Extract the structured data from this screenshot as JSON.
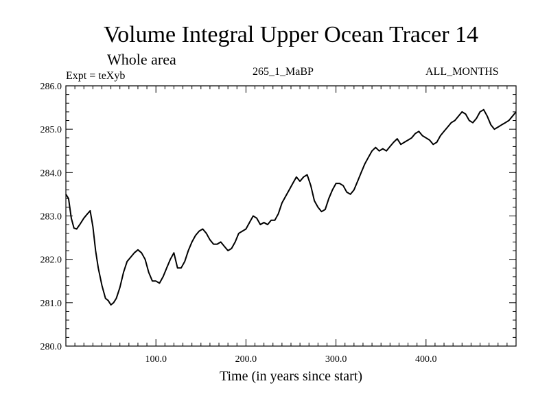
{
  "chart_data": {
    "type": "line",
    "title": "Volume Integral Upper Ocean Tracer 14",
    "subtitle": "Whole area",
    "annotations": {
      "experiment": "Expt = teXyb",
      "run": "265_1_MaBP",
      "months": "ALL_MONTHS"
    },
    "xlabel": "Time (in years since start)",
    "ylabel": "",
    "xlim": [
      0,
      500
    ],
    "ylim": [
      280.0,
      286.0
    ],
    "x_ticks": [
      {
        "value": 100,
        "label": "100.0"
      },
      {
        "value": 200,
        "label": "200.0"
      },
      {
        "value": 300,
        "label": "300.0"
      },
      {
        "value": 400,
        "label": "400.0"
      }
    ],
    "y_ticks": [
      {
        "value": 280,
        "label": "280.0"
      },
      {
        "value": 281,
        "label": "281.0"
      },
      {
        "value": 282,
        "label": "282.0"
      },
      {
        "value": 283,
        "label": "283.0"
      },
      {
        "value": 284,
        "label": "284.0"
      },
      {
        "value": 285,
        "label": "285.0"
      },
      {
        "value": 286,
        "label": "286.0"
      }
    ],
    "grid": false,
    "series": [
      {
        "color": "#000000",
        "x": [
          0,
          3,
          6,
          9,
          12,
          16,
          20,
          24,
          27,
          30,
          33,
          36,
          40,
          44,
          47,
          50,
          53,
          56,
          60,
          64,
          68,
          72,
          76,
          80,
          84,
          88,
          92,
          96,
          100,
          104,
          108,
          112,
          116,
          120,
          124,
          128,
          132,
          136,
          140,
          144,
          148,
          152,
          156,
          160,
          164,
          168,
          172,
          176,
          180,
          184,
          188,
          192,
          196,
          200,
          204,
          208,
          212,
          216,
          220,
          224,
          228,
          232,
          236,
          240,
          244,
          248,
          252,
          256,
          260,
          264,
          268,
          272,
          276,
          280,
          284,
          288,
          292,
          296,
          300,
          304,
          308,
          312,
          316,
          320,
          324,
          328,
          332,
          336,
          340,
          344,
          348,
          352,
          356,
          360,
          364,
          368,
          372,
          376,
          380,
          384,
          388,
          392,
          396,
          400,
          404,
          408,
          412,
          416,
          420,
          424,
          428,
          432,
          436,
          440,
          444,
          448,
          452,
          456,
          460,
          464,
          468,
          472,
          476,
          480,
          484,
          488,
          492,
          496,
          500
        ],
        "values": [
          283.5,
          283.4,
          282.95,
          282.72,
          282.7,
          282.82,
          282.95,
          283.05,
          283.12,
          282.75,
          282.2,
          281.8,
          281.4,
          281.1,
          281.05,
          280.95,
          281.0,
          281.1,
          281.35,
          281.7,
          281.95,
          282.05,
          282.15,
          282.22,
          282.15,
          282.0,
          281.7,
          281.5,
          281.5,
          281.45,
          281.6,
          281.8,
          282.0,
          282.15,
          281.8,
          281.8,
          281.95,
          282.2,
          282.4,
          282.55,
          282.65,
          282.7,
          282.6,
          282.45,
          282.35,
          282.35,
          282.4,
          282.3,
          282.2,
          282.25,
          282.4,
          282.6,
          282.65,
          282.7,
          282.85,
          283.0,
          282.95,
          282.8,
          282.85,
          282.8,
          282.9,
          282.9,
          283.05,
          283.3,
          283.45,
          283.6,
          283.75,
          283.9,
          283.8,
          283.9,
          283.95,
          283.7,
          283.35,
          283.2,
          283.1,
          283.15,
          283.4,
          283.6,
          283.75,
          283.75,
          283.7,
          283.55,
          283.5,
          283.6,
          283.8,
          284.0,
          284.2,
          284.35,
          284.5,
          284.58,
          284.5,
          284.55,
          284.5,
          284.6,
          284.7,
          284.78,
          284.65,
          284.7,
          284.75,
          284.8,
          284.9,
          284.95,
          284.85,
          284.8,
          284.75,
          284.65,
          284.7,
          284.85,
          284.95,
          285.05,
          285.15,
          285.2,
          285.3,
          285.4,
          285.35,
          285.2,
          285.15,
          285.25,
          285.4,
          285.45,
          285.3,
          285.1,
          285.0,
          285.05,
          285.1,
          285.15,
          285.2,
          285.3,
          285.4
        ]
      }
    ]
  }
}
